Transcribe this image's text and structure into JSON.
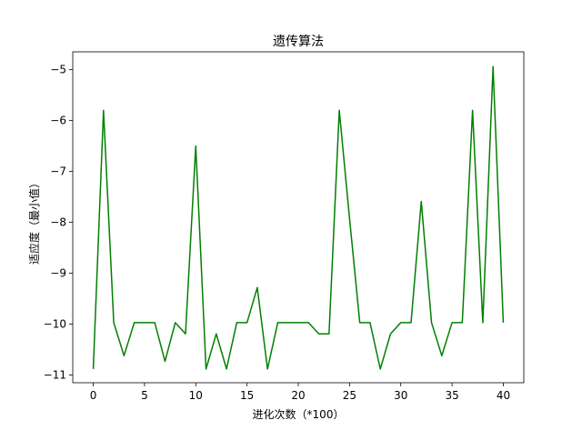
{
  "chart_data": {
    "type": "line",
    "title": "遗传算法",
    "xlabel": "进化次数（*100）",
    "ylabel": "适应度（最小值）",
    "xlim": [
      -2,
      42
    ],
    "ylim": [
      -11.15,
      -4.65
    ],
    "xticks": [
      0,
      5,
      10,
      15,
      20,
      25,
      30,
      35,
      40
    ],
    "xtick_labels": [
      "0",
      "5",
      "10",
      "15",
      "20",
      "25",
      "30",
      "35",
      "40"
    ],
    "yticks": [
      -11,
      -10,
      -9,
      -8,
      -7,
      -6,
      -5
    ],
    "ytick_labels": [
      "−11",
      "−10",
      "−9",
      "−8",
      "−7",
      "−6",
      "−5"
    ],
    "grid": false,
    "series": [
      {
        "color": "#008000",
        "x": [
          0,
          1,
          2,
          3,
          4,
          5,
          6,
          7,
          8,
          9,
          10,
          11,
          12,
          13,
          14,
          15,
          16,
          17,
          18,
          19,
          20,
          21,
          22,
          23,
          24,
          25,
          26,
          27,
          28,
          29,
          30,
          31,
          32,
          33,
          34,
          35,
          36,
          37,
          38,
          39,
          40
        ],
        "values": [
          -10.88,
          -5.8,
          -9.97,
          -10.62,
          -9.97,
          -9.97,
          -9.97,
          -10.73,
          -9.97,
          -10.19,
          -6.5,
          -10.88,
          -10.19,
          -10.88,
          -9.97,
          -9.97,
          -9.28,
          -10.88,
          -9.97,
          -9.97,
          -9.97,
          -9.97,
          -10.19,
          -10.19,
          -5.8,
          -7.92,
          -9.97,
          -9.97,
          -10.88,
          -10.19,
          -9.97,
          -9.97,
          -7.59,
          -9.97,
          -10.62,
          -9.97,
          -9.97,
          -5.8,
          -9.97,
          -4.94,
          -9.97
        ]
      }
    ]
  }
}
